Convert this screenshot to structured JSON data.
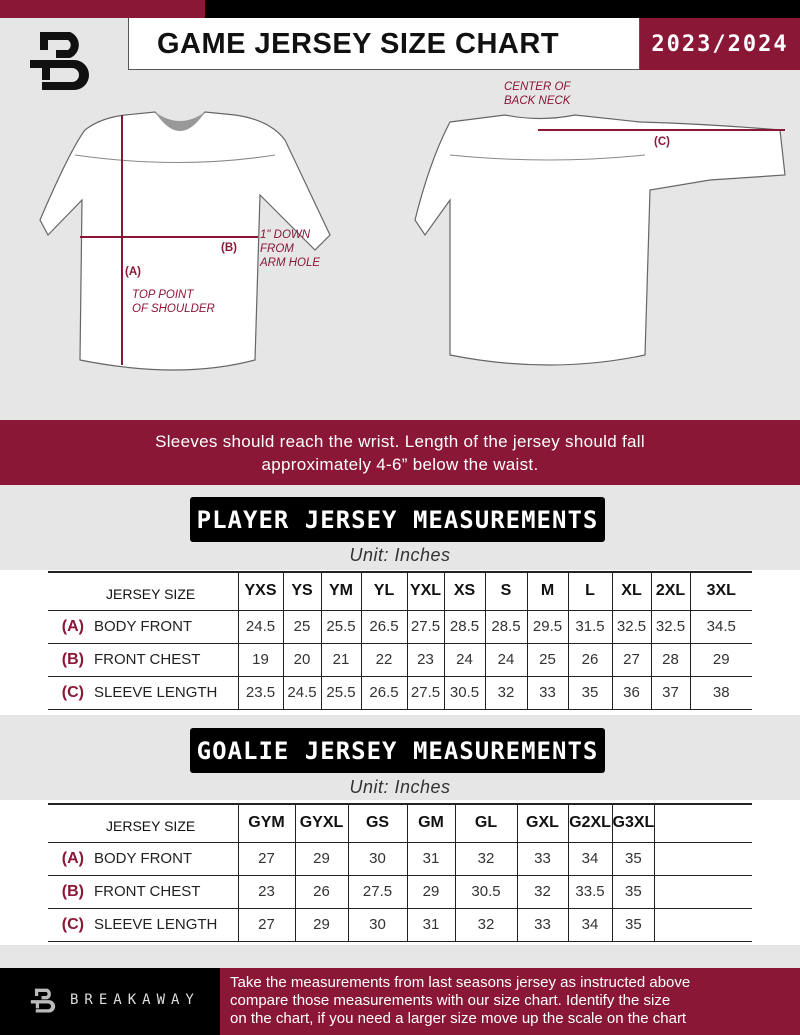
{
  "header": {
    "title": "GAME JERSEY SIZE CHART",
    "season": "2023/2024"
  },
  "diagram": {
    "center_back_neck": [
      "CENTER OF",
      "BACK NECK"
    ],
    "label_a": "(A)",
    "label_b": "(B)",
    "label_c": "(C)",
    "arm_hole_note": [
      "1\" DOWN",
      "FROM",
      "ARM HOLE"
    ],
    "shoulder_note": [
      "TOP POINT",
      "OF SHOULDER"
    ]
  },
  "band": {
    "lines": [
      "Sleeves should reach the wrist. Length of the jersey should fall",
      "approximately 4-6” below the waist."
    ]
  },
  "player": {
    "title": "PLAYER JERSEY MEASUREMENTS",
    "unit": "Unit: Inches",
    "header_label": "JERSEY SIZE",
    "sizes": [
      "YXS",
      "YS",
      "YM",
      "YL",
      "YXL",
      "XS",
      "S",
      "M",
      "L",
      "XL",
      "2XL",
      "3XL"
    ],
    "rows": [
      {
        "letter": "(A)",
        "label": "BODY FRONT",
        "values": [
          "24.5",
          "25",
          "25.5",
          "26.5",
          "27.5",
          "28.5",
          "28.5",
          "29.5",
          "31.5",
          "32.5",
          "32.5",
          "34.5"
        ]
      },
      {
        "letter": "(B)",
        "label": "FRONT CHEST",
        "values": [
          "19",
          "20",
          "21",
          "22",
          "23",
          "24",
          "24",
          "25",
          "26",
          "27",
          "28",
          "29"
        ]
      },
      {
        "letter": "(C)",
        "label": "SLEEVE LENGTH",
        "values": [
          "23.5",
          "24.5",
          "25.5",
          "26.5",
          "27.5",
          "30.5",
          "32",
          "33",
          "35",
          "36",
          "37",
          "38"
        ]
      }
    ]
  },
  "goalie": {
    "title": "GOALIE JERSEY MEASUREMENTS",
    "unit": "Unit: Inches",
    "header_label": "JERSEY SIZE",
    "sizes": [
      "GYM",
      "GYXL",
      "GS",
      "GM",
      "GL",
      "GXL",
      "G2XL",
      "G3XL",
      ""
    ],
    "rows": [
      {
        "letter": "(A)",
        "label": "BODY FRONT",
        "values": [
          "27",
          "29",
          "30",
          "31",
          "32",
          "33",
          "34",
          "35",
          ""
        ]
      },
      {
        "letter": "(B)",
        "label": "FRONT CHEST",
        "values": [
          "23",
          "26",
          "27.5",
          "29",
          "30.5",
          "32",
          "33.5",
          "35",
          ""
        ]
      },
      {
        "letter": "(C)",
        "label": "SLEEVE LENGTH",
        "values": [
          "27",
          "29",
          "30",
          "31",
          "32",
          "33",
          "34",
          "35",
          ""
        ]
      }
    ]
  },
  "footer": {
    "brand": "BREAKAWAY",
    "lines": [
      "Take the measurements from last seasons jersey as instructed above",
      "compare those measurements  with our size chart. Identify the size",
      "on the chart, if you need a larger size move up the scale on the chart"
    ]
  },
  "colors": {
    "accent": "#8a1736",
    "dark": "#000000",
    "background": "#e6e6e7"
  }
}
